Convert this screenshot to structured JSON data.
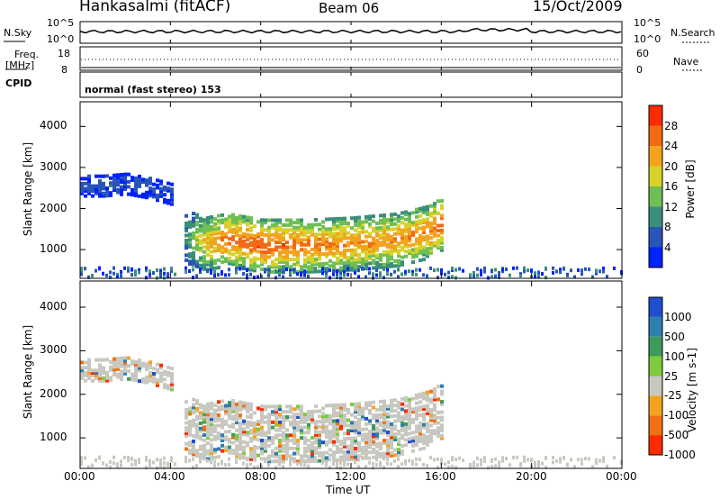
{
  "header": {
    "station": "Hankasalmi (fitACF)",
    "beam": "Beam 06",
    "date": "15/Oct/2009"
  },
  "mini_panels": {
    "nsky_label": "N.Sky",
    "nsky_ticks": [
      "10^5",
      "10^0"
    ],
    "nsearch_label": "N.Search",
    "freq_label_1": "Freq.",
    "freq_label_2": "[MHz]",
    "freq_ticks": [
      "18",
      "8"
    ],
    "nave_label": "Nave",
    "nave_ticks": [
      "60",
      "0"
    ],
    "cpid_label": "CPID",
    "cpid_text": "normal (fast stereo) 153"
  },
  "chart_data": [
    {
      "type": "heatmap",
      "title": "Power",
      "xlabel": "Time UT",
      "ylabel": "Slant Range [km]",
      "x_ticks": [
        "00:00",
        "04:00",
        "08:00",
        "12:00",
        "16:00",
        "20:00",
        "00:00"
      ],
      "y_ticks": [
        1000,
        2000,
        3000,
        4000
      ],
      "ylim": [
        300,
        4600
      ],
      "colorbar_label": "Power [dB]",
      "colorbar_ticks": [
        4,
        8,
        12,
        16,
        20,
        24,
        28
      ],
      "colorbar_colors": [
        "#0022ff",
        "#2a55b8",
        "#3b8f7a",
        "#6fbf55",
        "#d8d12a",
        "#f3a31e",
        "#f26a14",
        "#ff2a00"
      ],
      "series": [
        {
          "name": "main_echo_band",
          "x_hours": [
            4.5,
            5.5,
            6.5,
            8,
            10,
            12,
            14,
            15.5,
            16
          ],
          "range_km": [
            1400,
            1200,
            1300,
            1150,
            1150,
            1200,
            1300,
            1500,
            1700
          ],
          "power_db": [
            10,
            22,
            26,
            28,
            26,
            25,
            24,
            26,
            28
          ]
        },
        {
          "name": "early_far_echo",
          "x_hours": [
            0,
            1,
            2,
            3,
            4
          ],
          "range_km": [
            2600,
            2600,
            2650,
            2550,
            2400
          ],
          "power_db": [
            6,
            7,
            6,
            6,
            5
          ]
        }
      ]
    },
    {
      "type": "heatmap",
      "title": "Velocity",
      "xlabel": "Time UT",
      "ylabel": "Slant Range [km]",
      "x_ticks": [
        "00:00",
        "04:00",
        "08:00",
        "12:00",
        "16:00",
        "20:00",
        "00:00"
      ],
      "y_ticks": [
        1000,
        2000,
        3000,
        4000
      ],
      "ylim": [
        300,
        4600
      ],
      "colorbar_label": "Velocity [m s-1]",
      "colorbar_ticks": [
        "1000",
        "500",
        "100",
        "25",
        "-25",
        "-100",
        "-500",
        "-1000"
      ],
      "colorbar_colors": [
        "#1f4fd0",
        "#2e7fb0",
        "#3e9a5a",
        "#7ccc3c",
        "#c8c8c0",
        "#f3a31e",
        "#f27014",
        "#ff2a00"
      ]
    }
  ]
}
